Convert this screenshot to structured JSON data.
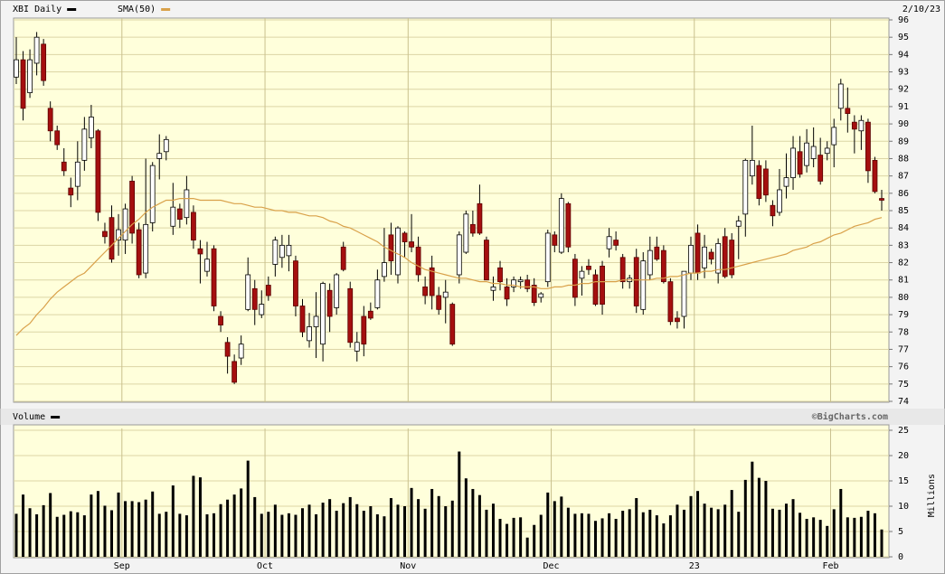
{
  "chart_data": [
    {
      "type": "candlestick",
      "date": "2/10/23",
      "series": [
        {
          "name": "XBI Daily",
          "color": "#000000",
          "up_color": "#ffffff",
          "down_color": "#a50f0f",
          "open": [
            92.7,
            93.7,
            91.8,
            93.5,
            94.6,
            90.9,
            89.6,
            87.8,
            86.3,
            86.4,
            87.9,
            89.2,
            89.6,
            83.8,
            84.6,
            83.3,
            83.3,
            86.7,
            83.9,
            81.4,
            84.3,
            88.0,
            88.4,
            84.1,
            85.1,
            84.6,
            84.9,
            82.8,
            81.5,
            82.8,
            78.9,
            77.4,
            76.3,
            76.5,
            79.3,
            80.5,
            79.0,
            80.7,
            81.9,
            82.3,
            82.4,
            82.1,
            79.5,
            77.5,
            78.3,
            77.3,
            80.4,
            79.4,
            82.9,
            80.5,
            76.9,
            78.9,
            79.2,
            79.4,
            81.2,
            83.6,
            81.3,
            83.7,
            83.2,
            82.9,
            80.6,
            81.7,
            80.1,
            80.0,
            79.6,
            81.3,
            82.6,
            84.2,
            85.4,
            83.3,
            80.4,
            81.7,
            80.6,
            80.6,
            80.9,
            81.0,
            80.7,
            80.0,
            80.9,
            83.6,
            82.6,
            85.4,
            82.2,
            81.1,
            81.8,
            81.3,
            81.8,
            82.8,
            83.3,
            82.3,
            80.9,
            82.3,
            79.3,
            81.3,
            82.9,
            82.7,
            80.9,
            78.8,
            78.9,
            81.4,
            83.7,
            81.7,
            82.6,
            81.4,
            83.5,
            83.3,
            84.1,
            84.8,
            87.0,
            87.6,
            87.4,
            85.3,
            84.9,
            86.4,
            86.9,
            88.4,
            87.6,
            88.0,
            88.2,
            88.3,
            88.8,
            90.9,
            90.9,
            90.1,
            89.6,
            90.1,
            87.9,
            85.7
          ],
          "high": [
            95.0,
            94.2,
            94.3,
            95.3,
            94.9,
            91.3,
            89.9,
            88.6,
            86.9,
            89.0,
            90.4,
            91.1,
            89.7,
            84.3,
            85.3,
            84.8,
            85.4,
            87.0,
            84.3,
            88.0,
            87.8,
            89.4,
            89.3,
            86.6,
            85.4,
            87.0,
            85.3,
            83.3,
            83.2,
            83.0,
            79.2,
            77.7,
            76.7,
            77.8,
            82.3,
            81.0,
            80.4,
            81.2,
            83.5,
            83.6,
            83.6,
            82.4,
            79.9,
            79.1,
            80.3,
            80.9,
            80.8,
            81.4,
            83.2,
            80.9,
            78.0,
            79.5,
            79.7,
            81.6,
            84.0,
            84.3,
            84.1,
            83.8,
            84.8,
            83.5,
            81.2,
            82.4,
            80.6,
            81.0,
            79.7,
            83.8,
            85.0,
            85.0,
            86.5,
            83.5,
            81.2,
            82.1,
            81.1,
            81.2,
            81.2,
            81.3,
            81.1,
            80.3,
            83.9,
            83.8,
            86.0,
            85.5,
            82.5,
            81.8,
            82.2,
            81.6,
            82.1,
            84.0,
            83.8,
            82.5,
            81.3,
            82.8,
            82.6,
            83.5,
            83.5,
            83.0,
            81.1,
            79.2,
            81.5,
            83.5,
            84.2,
            83.6,
            82.8,
            83.4,
            84.0,
            83.7,
            84.7,
            88.0,
            89.9,
            87.9,
            87.9,
            85.6,
            87.4,
            88.3,
            89.3,
            89.3,
            89.7,
            89.8,
            89.2,
            89.0,
            90.3,
            92.6,
            92.1,
            90.5,
            90.5,
            90.3,
            88.1,
            86.2
          ],
          "low": [
            92.3,
            90.2,
            91.5,
            92.8,
            92.2,
            89.0,
            88.5,
            87.0,
            85.2,
            85.6,
            87.3,
            88.6,
            84.4,
            83.1,
            82.0,
            82.4,
            82.5,
            83.1,
            81.1,
            81.1,
            83.8,
            86.8,
            87.9,
            83.6,
            84.0,
            84.2,
            82.8,
            80.8,
            81.2,
            79.2,
            78.0,
            75.6,
            75.0,
            76.1,
            79.2,
            78.4,
            78.8,
            79.8,
            81.2,
            81.7,
            81.5,
            78.9,
            77.7,
            77.1,
            76.5,
            76.3,
            78.0,
            79.0,
            81.5,
            77.1,
            76.3,
            76.6,
            78.7,
            79.3,
            80.9,
            81.3,
            80.8,
            82.3,
            82.6,
            80.9,
            79.6,
            79.3,
            79.0,
            78.5,
            77.2,
            80.8,
            82.5,
            83.5,
            83.6,
            81.0,
            79.8,
            80.4,
            79.5,
            80.3,
            80.5,
            80.3,
            79.5,
            79.7,
            80.6,
            82.6,
            82.5,
            82.6,
            79.5,
            80.1,
            81.3,
            79.5,
            79.0,
            82.3,
            82.7,
            80.5,
            80.5,
            79.1,
            79.0,
            81.0,
            82.1,
            80.8,
            78.4,
            78.2,
            78.2,
            81.0,
            81.0,
            81.1,
            81.9,
            80.8,
            81.1,
            81.1,
            82.2,
            83.5,
            86.5,
            85.3,
            85.5,
            84.1,
            84.7,
            85.7,
            86.2,
            86.9,
            87.2,
            87.5,
            86.5,
            87.9,
            87.5,
            90.2,
            89.5,
            88.3,
            88.5,
            86.6,
            86.0,
            85.0
          ],
          "close": [
            93.7,
            90.9,
            93.7,
            95.0,
            92.5,
            89.6,
            88.8,
            87.3,
            85.9,
            87.8,
            89.7,
            90.4,
            84.9,
            83.5,
            82.2,
            83.9,
            85.1,
            83.7,
            81.3,
            84.2,
            87.6,
            88.3,
            89.1,
            85.2,
            84.5,
            86.2,
            83.3,
            82.5,
            82.2,
            79.5,
            78.4,
            76.6,
            75.1,
            77.3,
            81.3,
            79.3,
            79.6,
            80.1,
            83.3,
            83.0,
            83.0,
            79.5,
            78.0,
            78.3,
            78.9,
            80.8,
            78.9,
            81.3,
            81.6,
            77.4,
            77.4,
            77.3,
            78.8,
            81.0,
            82.0,
            82.1,
            84.0,
            83.2,
            82.9,
            81.3,
            80.1,
            80.1,
            79.3,
            80.3,
            77.3,
            83.6,
            84.8,
            83.7,
            83.7,
            81.0,
            80.6,
            80.9,
            79.9,
            81.0,
            81.0,
            80.5,
            79.7,
            80.2,
            83.7,
            83.0,
            85.7,
            82.9,
            80.0,
            81.5,
            81.6,
            79.6,
            79.6,
            83.5,
            83.0,
            80.9,
            81.1,
            79.5,
            82.1,
            82.7,
            82.2,
            80.9,
            78.6,
            78.6,
            81.5,
            83.0,
            81.4,
            82.9,
            82.2,
            83.1,
            81.2,
            81.3,
            84.4,
            87.9,
            87.9,
            85.7,
            85.9,
            84.7,
            86.2,
            86.9,
            88.6,
            87.1,
            88.9,
            88.7,
            86.7,
            88.6,
            89.8,
            92.3,
            90.6,
            89.7,
            90.2,
            87.3,
            86.1,
            85.6
          ]
        },
        {
          "name": "SMA(50)",
          "color": "#d9a14a",
          "values": [
            77.8,
            78.2,
            78.5,
            79.0,
            79.4,
            79.9,
            80.3,
            80.6,
            80.9,
            81.2,
            81.4,
            81.8,
            82.2,
            82.6,
            83.0,
            83.4,
            83.8,
            84.2,
            84.5,
            84.9,
            85.2,
            85.4,
            85.6,
            85.6,
            85.7,
            85.7,
            85.7,
            85.6,
            85.6,
            85.6,
            85.6,
            85.5,
            85.4,
            85.4,
            85.3,
            85.2,
            85.2,
            85.1,
            85.0,
            85.0,
            84.9,
            84.9,
            84.8,
            84.7,
            84.7,
            84.6,
            84.4,
            84.3,
            84.1,
            84.0,
            83.8,
            83.6,
            83.4,
            83.2,
            82.9,
            82.7,
            82.5,
            82.3,
            82.0,
            81.8,
            81.6,
            81.5,
            81.4,
            81.3,
            81.2,
            81.1,
            81.1,
            81.0,
            80.9,
            80.9,
            80.8,
            80.8,
            80.7,
            80.7,
            80.6,
            80.6,
            80.6,
            80.5,
            80.5,
            80.6,
            80.6,
            80.7,
            80.7,
            80.8,
            80.8,
            80.9,
            80.9,
            80.9,
            80.9,
            81.0,
            81.0,
            81.0,
            81.0,
            81.0,
            81.1,
            81.1,
            81.2,
            81.2,
            81.3,
            81.4,
            81.4,
            81.5,
            81.5,
            81.6,
            81.6,
            81.7,
            81.8,
            81.9,
            82.0,
            82.1,
            82.2,
            82.3,
            82.4,
            82.5,
            82.7,
            82.8,
            82.9,
            83.1,
            83.2,
            83.4,
            83.6,
            83.7,
            83.9,
            84.1,
            84.2,
            84.3,
            84.5,
            84.6
          ]
        }
      ],
      "ylim": [
        74,
        96
      ],
      "yticks": [
        74,
        75,
        76,
        77,
        78,
        79,
        80,
        81,
        82,
        83,
        84,
        85,
        86,
        87,
        88,
        89,
        90,
        91,
        92,
        93,
        94,
        95,
        96
      ],
      "grid": true
    },
    {
      "type": "bar",
      "source": "©BigCharts.com",
      "ylabel": "Millions",
      "categories": [
        null,
        null,
        null,
        null,
        null,
        null,
        null,
        null,
        null,
        null,
        null,
        null,
        null,
        null,
        null,
        null,
        "Sep",
        null,
        null,
        null,
        null,
        null,
        null,
        null,
        null,
        null,
        null,
        null,
        null,
        null,
        null,
        null,
        null,
        null,
        null,
        null,
        null,
        "Oct",
        null,
        null,
        null,
        null,
        null,
        null,
        null,
        null,
        null,
        null,
        null,
        null,
        null,
        null,
        null,
        null,
        null,
        null,
        null,
        null,
        "Nov",
        null,
        null,
        null,
        null,
        null,
        null,
        null,
        null,
        null,
        null,
        null,
        null,
        null,
        null,
        null,
        null,
        null,
        null,
        null,
        null,
        "Dec",
        null,
        null,
        null,
        null,
        null,
        null,
        null,
        null,
        null,
        null,
        null,
        null,
        null,
        null,
        null,
        null,
        null,
        null,
        null,
        null,
        "23",
        null,
        null,
        null,
        null,
        null,
        null,
        null,
        null,
        null,
        null,
        null,
        null,
        null,
        null,
        null,
        null,
        null,
        null,
        null,
        "Feb",
        null,
        null,
        null,
        null,
        null,
        null,
        null
      ],
      "series": [
        {
          "name": "Volume",
          "color": "#000000",
          "values": [
            8.5,
            12.3,
            9.6,
            8.4,
            10.2,
            12.6,
            7.9,
            8.3,
            9.0,
            8.8,
            8.2,
            12.3,
            13.0,
            10.1,
            9.2,
            12.7,
            11.0,
            11.0,
            10.8,
            11.3,
            12.9,
            8.5,
            8.9,
            14.1,
            8.5,
            8.2,
            16.0,
            15.7,
            8.4,
            8.6,
            10.4,
            11.3,
            12.3,
            13.5,
            19.0,
            11.8,
            8.5,
            8.9,
            10.3,
            8.3,
            8.6,
            8.3,
            9.6,
            10.3,
            8.4,
            10.7,
            11.4,
            9.1,
            10.6,
            11.8,
            10.4,
            9.1,
            10.0,
            8.4,
            8.0,
            11.6,
            10.3,
            10.0,
            13.6,
            11.4,
            9.5,
            13.4,
            12.0,
            10.0,
            11.1,
            20.8,
            15.5,
            13.4,
            12.2,
            9.3,
            10.5,
            7.5,
            6.5,
            7.7,
            7.8,
            3.8,
            6.3,
            8.3,
            12.7,
            11.0,
            11.9,
            9.7,
            8.5,
            8.6,
            8.5,
            7.1,
            7.6,
            8.6,
            7.5,
            9.1,
            9.4,
            11.6,
            8.8,
            9.3,
            8.2,
            6.6,
            8.2,
            10.3,
            9.3,
            12.0,
            13.0,
            10.5,
            9.7,
            9.4,
            10.3,
            13.2,
            8.9,
            15.2,
            18.8,
            15.6,
            15.0,
            9.5,
            9.3,
            10.5,
            11.4,
            8.7,
            7.5,
            7.8,
            7.3,
            6.1,
            9.4,
            13.4,
            7.8,
            7.7,
            7.9,
            9.1,
            8.6,
            5.4
          ]
        }
      ],
      "ylim": [
        0,
        25
      ],
      "yticks": [
        0,
        5,
        10,
        15,
        20,
        25
      ],
      "grid": true
    }
  ]
}
